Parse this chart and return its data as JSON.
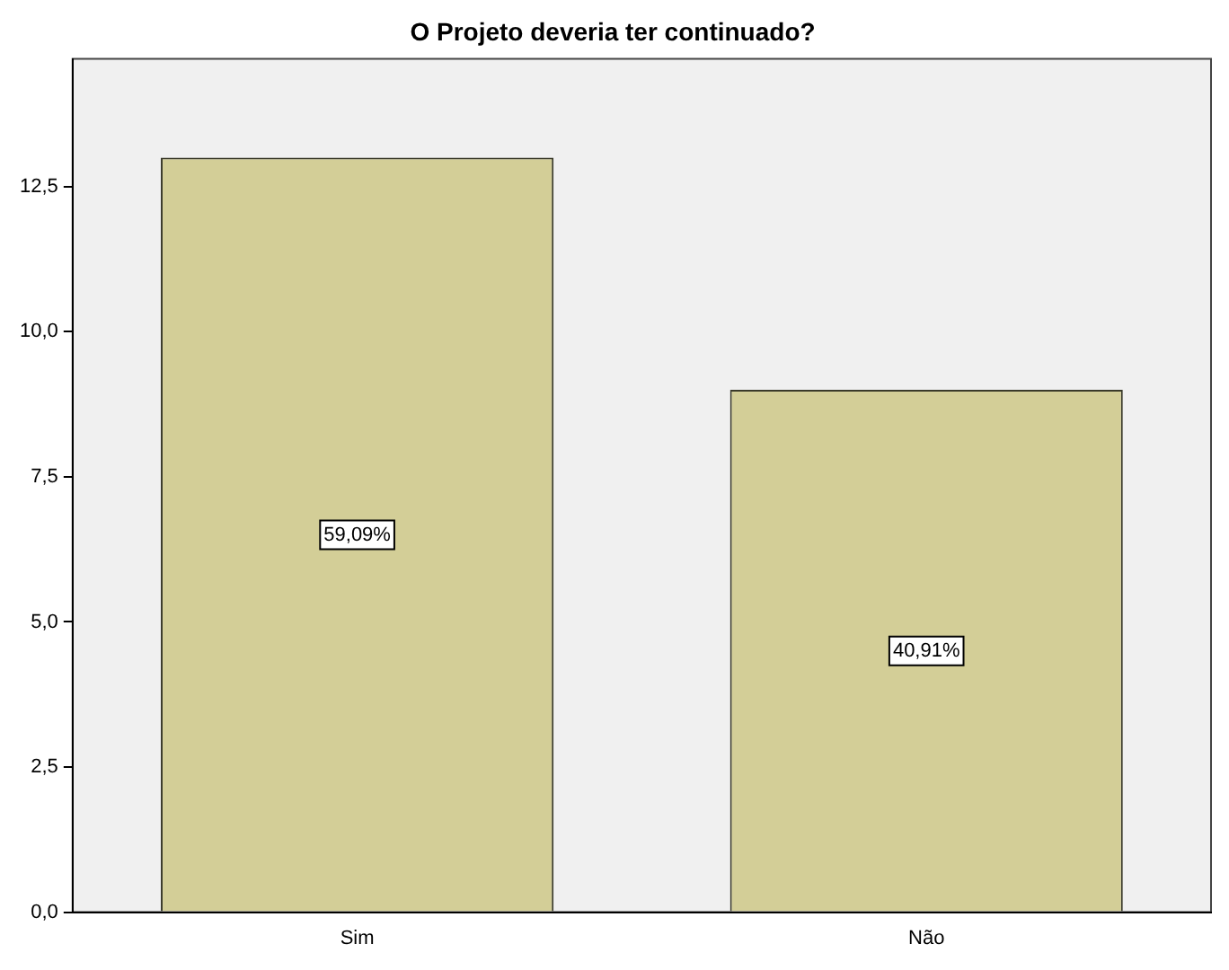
{
  "chart_data": {
    "type": "bar",
    "title": "O Projeto deveria ter continuado?",
    "categories": [
      "Sim",
      "Não"
    ],
    "values": [
      13,
      9
    ],
    "annotations": [
      {
        "text": "59,09%",
        "x": "Sim",
        "y": 6.5
      },
      {
        "text": "40,91%",
        "x": "Não",
        "y": 4.5
      }
    ],
    "color": "#d3ce97",
    "ylim": [
      0,
      14.7
    ],
    "yticks": [
      {
        "value": 0,
        "label": "0,0"
      },
      {
        "value": 2.5,
        "label": "2,5"
      },
      {
        "value": 5,
        "label": "5,0"
      },
      {
        "value": 7.5,
        "label": "7,5"
      },
      {
        "value": 10,
        "label": "10,0"
      },
      {
        "value": 12.5,
        "label": "12,5"
      }
    ],
    "grid": false,
    "legend": false
  }
}
